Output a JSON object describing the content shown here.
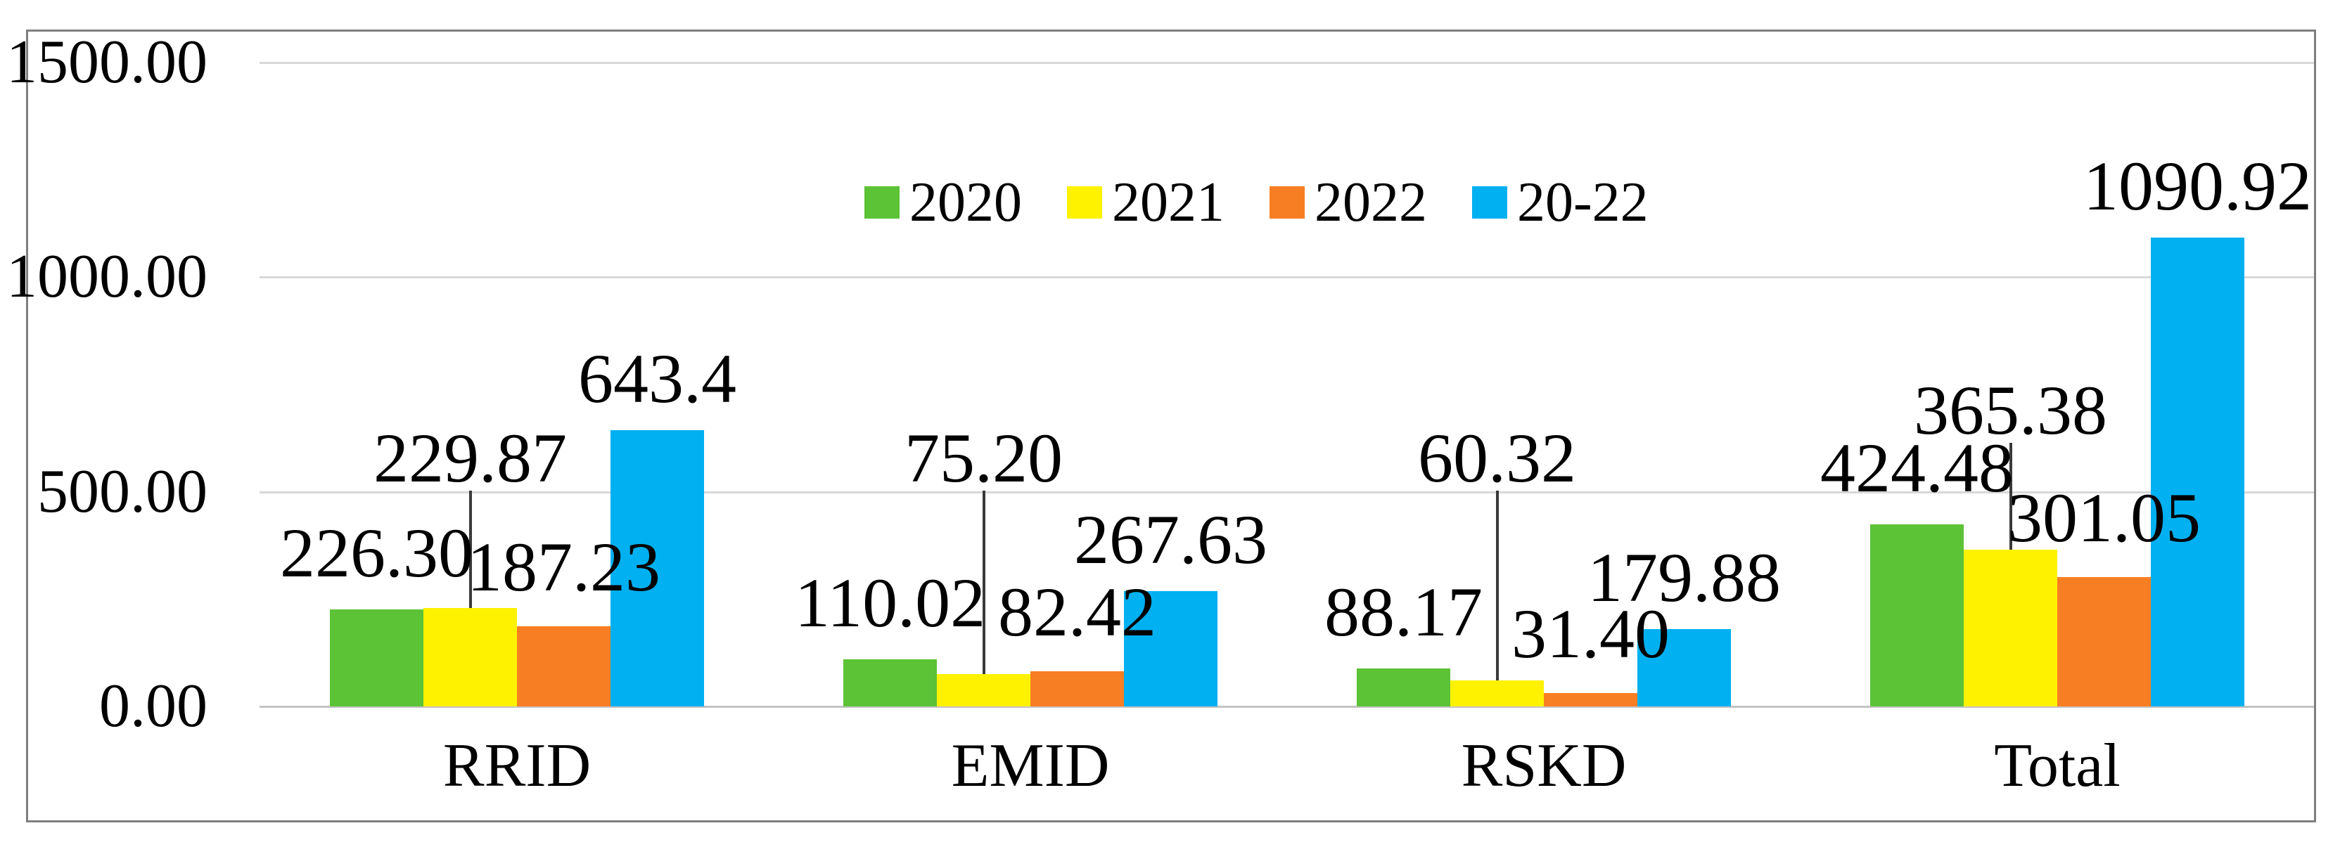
{
  "figure": {
    "kind": "excel-style clustered column chart inside a gray border frame",
    "background": "#ffffff",
    "frame_border_color": "#7f7f7f",
    "gridline_color": "#d8d8d8",
    "axis_line_color": "#c4c4c4",
    "leader_line_color": "#3a3a3a",
    "text_color": "#000000"
  },
  "chart_data": {
    "type": "bar",
    "title": "",
    "xlabel": "",
    "ylabel": "",
    "categories": [
      "RRID",
      "EMID",
      "RSKD",
      "Total"
    ],
    "series": [
      {
        "name": "2020",
        "color": "#5cc236",
        "values": [
          226.3,
          110.02,
          88.17,
          424.48
        ],
        "labels": [
          "226.30",
          "110.02",
          "88.17",
          "424.48"
        ]
      },
      {
        "name": "2021",
        "color": "#fef200",
        "values": [
          229.87,
          75.2,
          60.32,
          365.38
        ],
        "labels": [
          "229.87",
          "75.20",
          "60.32",
          "365.38"
        ],
        "label_style": "raised above bars with vertical leader lines"
      },
      {
        "name": "2022",
        "color": "#f87e23",
        "values": [
          187.23,
          82.42,
          31.4,
          301.05
        ],
        "labels": [
          "187.23",
          "82.42",
          "31.40",
          "301.05"
        ]
      },
      {
        "name": "20-22",
        "color": "#00b0f0",
        "values": [
          643.4,
          267.63,
          179.88,
          1090.92
        ],
        "labels": [
          "643.4",
          "267.63",
          "179.88",
          "1090.92"
        ]
      }
    ],
    "y_ticks": [
      {
        "label": "0.00",
        "value": 0
      },
      {
        "label": "500.00",
        "value": 500
      },
      {
        "label": "1000.00",
        "value": 1000
      },
      {
        "label": "1500.00",
        "value": 1500
      }
    ],
    "ylim": [
      0,
      1500
    ],
    "grid": "horizontal gridlines on",
    "legend_position": "top-center inside plot",
    "bars_per_group": 4,
    "data_labels_shown": true
  }
}
